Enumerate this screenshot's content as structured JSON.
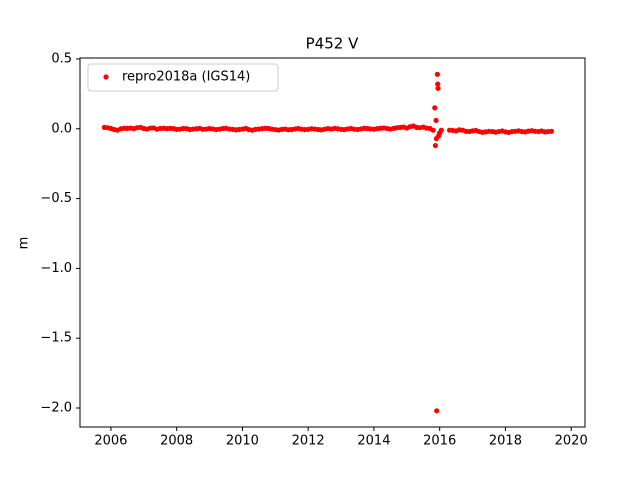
{
  "chart_data": {
    "type": "scatter",
    "title": "P452 V",
    "y_label": "m",
    "xlim": [
      2005.06,
      2020.42
    ],
    "ylim": [
      -2.136,
      0.507
    ],
    "xticks": [
      2006,
      2008,
      2010,
      2012,
      2014,
      2016,
      2018,
      2020
    ],
    "yticks": [
      0.5,
      {
        "value": 0,
        "label": "0.0"
      },
      {
        "value": -0.5,
        "label": "−0.5"
      },
      {
        "value": -1.0,
        "label": "−1.0"
      },
      {
        "value": -1.5,
        "label": "−1.5"
      },
      {
        "value": -2.0,
        "label": "−2.0"
      }
    ],
    "legend": "upper left",
    "series": [
      {
        "name": "repro2018a (IGS14)",
        "color": "#ff0000",
        "x": [
          2005.8,
          2005.9,
          2006.0,
          2006.1,
          2006.2,
          2006.3,
          2006.4,
          2006.5,
          2006.6,
          2006.7,
          2006.8,
          2006.9,
          2007.0,
          2007.1,
          2007.2,
          2007.3,
          2007.4,
          2007.5,
          2007.6,
          2007.7,
          2007.8,
          2007.9,
          2008.0,
          2008.1,
          2008.2,
          2008.3,
          2008.4,
          2008.5,
          2008.6,
          2008.7,
          2008.8,
          2008.9,
          2009.0,
          2009.1,
          2009.2,
          2009.3,
          2009.4,
          2009.5,
          2009.6,
          2009.7,
          2009.8,
          2009.9,
          2010.0,
          2010.1,
          2010.2,
          2010.3,
          2010.4,
          2010.5,
          2010.6,
          2010.7,
          2010.8,
          2010.9,
          2011.0,
          2011.1,
          2011.2,
          2011.3,
          2011.4,
          2011.5,
          2011.6,
          2011.7,
          2011.8,
          2011.9,
          2012.0,
          2012.1,
          2012.2,
          2012.3,
          2012.4,
          2012.5,
          2012.6,
          2012.7,
          2012.8,
          2012.9,
          2013.0,
          2013.1,
          2013.2,
          2013.3,
          2013.4,
          2013.5,
          2013.6,
          2013.7,
          2013.8,
          2013.9,
          2014.0,
          2014.1,
          2014.2,
          2014.3,
          2014.4,
          2014.5,
          2014.6,
          2014.7,
          2014.8,
          2014.9,
          2015.0,
          2015.1,
          2015.2,
          2015.3,
          2015.4,
          2015.5,
          2015.6,
          2015.7,
          2015.8,
          2015.85,
          2015.87,
          2015.89,
          2015.9,
          2015.91,
          2015.93,
          2015.94,
          2015.95,
          2015.97,
          2016.0,
          2016.05,
          2016.3,
          2016.4,
          2016.5,
          2016.6,
          2016.7,
          2016.8,
          2016.9,
          2017.0,
          2017.1,
          2017.2,
          2017.3,
          2017.4,
          2017.5,
          2017.6,
          2017.7,
          2017.8,
          2017.9,
          2018.0,
          2018.1,
          2018.2,
          2018.3,
          2018.4,
          2018.5,
          2018.6,
          2018.7,
          2018.8,
          2018.9,
          2019.0,
          2019.1,
          2019.2,
          2019.3,
          2019.4
        ],
        "values": [
          0.01,
          0.008,
          0.002,
          -0.005,
          -0.01,
          0,
          0.004,
          0.003,
          0.005,
          0.001,
          0.008,
          0.01,
          0.002,
          -0.002,
          0.005,
          0.006,
          -0.003,
          0.002,
          0.004,
          0.001,
          0.003,
          0.001,
          -0.004,
          -0.003,
          0.002,
          0.001,
          -0.005,
          -0.002,
          0,
          0.003,
          -0.004,
          -0.002,
          0.001,
          -0.001,
          -0.006,
          -0.003,
          0.002,
          0.004,
          -0.002,
          -0.004,
          -0.008,
          -0.005,
          -0.002,
          0.003,
          -0.006,
          -0.01,
          -0.004,
          -0.002,
          0.001,
          0.004,
          0.002,
          -0.003,
          -0.006,
          -0.009,
          -0.004,
          -0.002,
          -0.007,
          -0.005,
          -0.001,
          0.002,
          -0.003,
          -0.006,
          -0.004,
          0,
          -0.002,
          -0.005,
          -0.008,
          -0.003,
          0.001,
          -0.002,
          0.003,
          0,
          -0.004,
          -0.006,
          -0.001,
          0.002,
          -0.003,
          -0.005,
          -0.001,
          0.004,
          0.002,
          -0.001,
          -0.003,
          0.001,
          0.004,
          0.006,
          0.002,
          -0.002,
          0.003,
          0.008,
          0.01,
          0.012,
          0.005,
          0.015,
          0.02,
          0.01,
          0.008,
          0.012,
          0.005,
          0.002,
          -0.01,
          0.15,
          -0.12,
          0.06,
          -0.07,
          -2.02,
          0.39,
          0.32,
          0.29,
          -0.05,
          -0.03,
          -0.01,
          -0.01,
          -0.012,
          -0.015,
          -0.008,
          -0.01,
          -0.018,
          -0.02,
          -0.015,
          -0.012,
          -0.02,
          -0.025,
          -0.022,
          -0.018,
          -0.02,
          -0.024,
          -0.02,
          -0.016,
          -0.022,
          -0.026,
          -0.02,
          -0.018,
          -0.015,
          -0.02,
          -0.022,
          -0.017,
          -0.014,
          -0.018,
          -0.02,
          -0.016,
          -0.022,
          -0.02,
          -0.018
        ]
      }
    ]
  }
}
